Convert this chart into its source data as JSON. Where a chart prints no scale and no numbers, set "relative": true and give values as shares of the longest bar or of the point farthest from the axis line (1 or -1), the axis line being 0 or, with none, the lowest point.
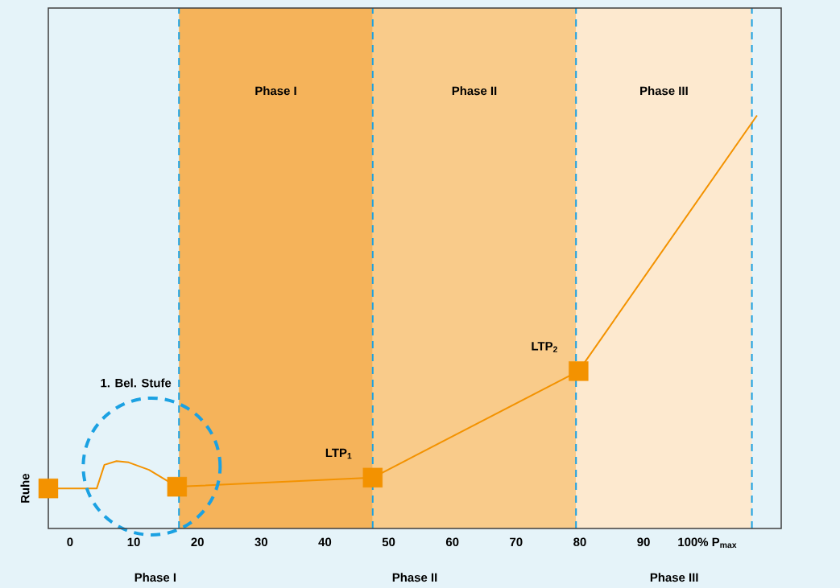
{
  "chart_data": {
    "type": "line",
    "relative": true,
    "xlim": [
      -3.4,
      111.6
    ],
    "xticks": [
      0,
      10,
      20,
      30,
      40,
      50,
      60,
      70,
      80,
      90,
      {
        "value": 100,
        "label": "100% P$_{max}$"
      }
    ],
    "series": [
      {
        "color": "#f39200",
        "marker": "none",
        "x": [
          -3.4,
          4.2,
          5.4,
          7.3,
          9.2,
          12.4,
          16.8,
          47.5,
          79.8,
          107.8
        ],
        "values": [
          0.097,
          0.097,
          0.154,
          0.163,
          0.16,
          0.142,
          0.101,
          0.123,
          0.381,
          1
        ]
      },
      {
        "type": "scatter",
        "color": "#f39200",
        "marker": "square",
        "x": [
          -3.4,
          16.8,
          47.5,
          79.8
        ],
        "values": [
          0.097,
          0.101,
          0.123,
          0.381
        ]
      }
    ],
    "bands": [
      {
        "axis": "x",
        "from": 17.1,
        "to": 47.5,
        "label": "Phase I",
        "color": "#f5b35a"
      },
      {
        "axis": "x",
        "from": 47.5,
        "to": 79.4,
        "label": "Phase II",
        "color": "#f9cb8a"
      },
      {
        "axis": "x",
        "from": 79.4,
        "to": 107,
        "label": "Phase III",
        "color": "#fde9cf"
      }
    ],
    "ref_lines": [
      {
        "axis": "x",
        "value": 17.1,
        "color": "#1ba1e2",
        "line_style": "dashed"
      },
      {
        "axis": "x",
        "value": 47.5,
        "color": "#1ba1e2",
        "line_style": "dashed"
      },
      {
        "axis": "x",
        "value": 79.4,
        "color": "#1ba1e2",
        "line_style": "dashed"
      },
      {
        "axis": "x",
        "value": 107,
        "color": "#1ba1e2",
        "line_style": "dashed"
      }
    ],
    "annotations": [
      {
        "text": "Ruhe",
        "x": -3.4,
        "y": 0.097
      },
      "1. Bel. Stufe",
      {
        "text": "LTP$_{1}$",
        "x": 47.5,
        "y": 0.123
      },
      {
        "text": "LTP$_{2}$",
        "x": 79.8,
        "y": 0.381
      },
      "Phase I",
      "Phase II",
      "Phase III"
    ]
  }
}
